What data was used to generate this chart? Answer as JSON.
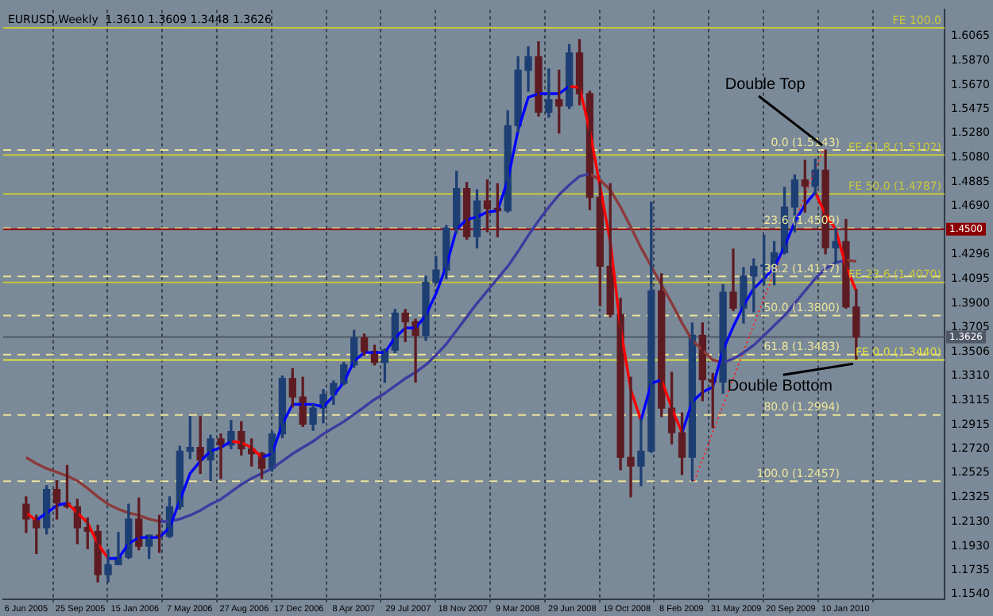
{
  "chart_data": {
    "type": "candlestick",
    "title": "EURUSD,Weekly  1.3610 1.3609 1.3448 1.3626",
    "x": [
      "2005-06-06",
      "2005-06-27",
      "2005-07-18",
      "2005-08-08",
      "2005-08-29",
      "2005-09-19",
      "2005-10-10",
      "2005-10-31",
      "2005-11-21",
      "2005-12-12",
      "2006-01-02",
      "2006-01-23",
      "2006-02-13",
      "2006-03-06",
      "2006-03-27",
      "2006-04-17",
      "2006-05-08",
      "2006-05-29",
      "2006-06-19",
      "2006-07-10",
      "2006-07-31",
      "2006-08-21",
      "2006-09-11",
      "2006-10-02",
      "2006-10-23",
      "2006-11-13",
      "2006-12-04",
      "2006-12-25",
      "2007-01-15",
      "2007-02-05",
      "2007-02-26",
      "2007-03-19",
      "2007-04-09",
      "2007-04-30",
      "2007-05-21",
      "2007-06-11",
      "2007-07-02",
      "2007-07-23",
      "2007-08-13",
      "2007-09-03",
      "2007-09-24",
      "2007-10-15",
      "2007-11-05",
      "2007-11-26",
      "2007-12-17",
      "2008-01-07",
      "2008-01-28",
      "2008-02-18",
      "2008-03-10",
      "2008-03-31",
      "2008-04-21",
      "2008-05-12",
      "2008-06-02",
      "2008-06-23",
      "2008-07-14",
      "2008-08-04",
      "2008-08-25",
      "2008-09-15",
      "2008-10-06",
      "2008-10-27",
      "2008-11-17",
      "2008-12-08",
      "2008-12-29",
      "2009-01-19",
      "2009-02-09",
      "2009-03-02",
      "2009-03-23",
      "2009-04-13",
      "2009-05-04",
      "2009-05-25",
      "2009-06-15",
      "2009-07-06",
      "2009-07-27",
      "2009-08-17",
      "2009-09-07",
      "2009-09-28",
      "2009-10-19",
      "2009-11-09",
      "2009-11-30",
      "2009-12-21",
      "2010-01-11",
      "2010-02-01"
    ],
    "ohlc": [
      [
        1.227,
        1.233,
        1.204,
        1.215
      ],
      [
        1.215,
        1.218,
        1.187,
        1.208
      ],
      [
        1.208,
        1.242,
        1.203,
        1.239
      ],
      [
        1.239,
        1.246,
        1.215,
        1.228
      ],
      [
        1.228,
        1.2585,
        1.224,
        1.225
      ],
      [
        1.225,
        1.231,
        1.195,
        1.208
      ],
      [
        1.208,
        1.216,
        1.191,
        1.205
      ],
      [
        1.205,
        1.21,
        1.164,
        1.17
      ],
      [
        1.17,
        1.19,
        1.164,
        1.178
      ],
      [
        1.178,
        1.204,
        1.178,
        1.184
      ],
      [
        1.184,
        1.227,
        1.183,
        1.215
      ],
      [
        1.215,
        1.232,
        1.19,
        1.193
      ],
      [
        1.193,
        1.202,
        1.183,
        1.202
      ],
      [
        1.202,
        1.218,
        1.188,
        1.201
      ],
      [
        1.201,
        1.233,
        1.2,
        1.225
      ],
      [
        1.225,
        1.274,
        1.223,
        1.27
      ],
      [
        1.27,
        1.298,
        1.264,
        1.273
      ],
      [
        1.273,
        1.298,
        1.252,
        1.263
      ],
      [
        1.263,
        1.283,
        1.246,
        1.28
      ],
      [
        1.28,
        1.284,
        1.248,
        1.275
      ],
      [
        1.275,
        1.295,
        1.272,
        1.286
      ],
      [
        1.286,
        1.294,
        1.267,
        1.272
      ],
      [
        1.272,
        1.28,
        1.258,
        1.268
      ],
      [
        1.268,
        1.269,
        1.248,
        1.256
      ],
      [
        1.256,
        1.286,
        1.254,
        1.284
      ],
      [
        1.284,
        1.331,
        1.281,
        1.329
      ],
      [
        1.329,
        1.337,
        1.306,
        1.314
      ],
      [
        1.314,
        1.33,
        1.29,
        1.292
      ],
      [
        1.292,
        1.308,
        1.287,
        1.305
      ],
      [
        1.305,
        1.32,
        1.293,
        1.316
      ],
      [
        1.316,
        1.327,
        1.308,
        1.325
      ],
      [
        1.325,
        1.342,
        1.324,
        1.34
      ],
      [
        1.34,
        1.368,
        1.338,
        1.362
      ],
      [
        1.362,
        1.365,
        1.348,
        1.351
      ],
      [
        1.351,
        1.356,
        1.34,
        1.342
      ],
      [
        1.342,
        1.353,
        1.326,
        1.352
      ],
      [
        1.352,
        1.385,
        1.35,
        1.382
      ],
      [
        1.382,
        1.385,
        1.359,
        1.375
      ],
      [
        1.375,
        1.377,
        1.326,
        1.364
      ],
      [
        1.364,
        1.412,
        1.36,
        1.407
      ],
      [
        1.407,
        1.428,
        1.406,
        1.417
      ],
      [
        1.417,
        1.453,
        1.41,
        1.451
      ],
      [
        1.451,
        1.497,
        1.447,
        1.483
      ],
      [
        1.483,
        1.488,
        1.442,
        1.444
      ],
      [
        1.444,
        1.482,
        1.435,
        1.473
      ],
      [
        1.473,
        1.49,
        1.448,
        1.467
      ],
      [
        1.467,
        1.487,
        1.444,
        1.465
      ],
      [
        1.465,
        1.546,
        1.464,
        1.534
      ],
      [
        1.534,
        1.59,
        1.529,
        1.579
      ],
      [
        1.579,
        1.598,
        1.562,
        1.59
      ],
      [
        1.59,
        1.602,
        1.542,
        1.545
      ],
      [
        1.545,
        1.58,
        1.541,
        1.555
      ],
      [
        1.555,
        1.579,
        1.528,
        1.55
      ],
      [
        1.55,
        1.6,
        1.548,
        1.593
      ],
      [
        1.593,
        1.6038,
        1.551,
        1.56
      ],
      [
        1.56,
        1.562,
        1.466,
        1.476
      ],
      [
        1.476,
        1.488,
        1.388,
        1.42
      ],
      [
        1.42,
        1.487,
        1.379,
        1.381
      ],
      [
        1.381,
        1.394,
        1.255,
        1.265
      ],
      [
        1.265,
        1.33,
        1.233,
        1.258
      ],
      [
        1.258,
        1.296,
        1.242,
        1.27
      ],
      [
        1.27,
        1.472,
        1.269,
        1.4
      ],
      [
        1.4,
        1.414,
        1.298,
        1.305
      ],
      [
        1.305,
        1.334,
        1.276,
        1.285
      ],
      [
        1.285,
        1.301,
        1.251,
        1.265
      ],
      [
        1.265,
        1.374,
        1.2457,
        1.364
      ],
      [
        1.364,
        1.374,
        1.311,
        1.328
      ],
      [
        1.328,
        1.333,
        1.289,
        1.326
      ],
      [
        1.326,
        1.405,
        1.317,
        1.399
      ],
      [
        1.399,
        1.434,
        1.384,
        1.386
      ],
      [
        1.386,
        1.419,
        1.374,
        1.412
      ],
      [
        1.412,
        1.426,
        1.383,
        1.42
      ],
      [
        1.42,
        1.445,
        1.405,
        1.421
      ],
      [
        1.421,
        1.44,
        1.405,
        1.431
      ],
      [
        1.431,
        1.484,
        1.43,
        1.468
      ],
      [
        1.468,
        1.494,
        1.448,
        1.49
      ],
      [
        1.49,
        1.506,
        1.464,
        1.485
      ],
      [
        1.485,
        1.507,
        1.478,
        1.498
      ],
      [
        1.498,
        1.5143,
        1.43,
        1.435
      ],
      [
        1.435,
        1.451,
        1.422,
        1.44
      ],
      [
        1.44,
        1.458,
        1.386,
        1.387
      ],
      [
        1.387,
        1.401,
        1.3448,
        1.3626
      ]
    ],
    "colors": [
      "#5e1c22",
      "#5e1c22",
      "#1e3f73",
      "#5e1c22",
      "#5e1c22",
      "#5e1c22",
      "#5e1c22",
      "#5e1c22",
      "#1e3f73",
      "#1e3f73",
      "#1e3f73",
      "#5e1c22",
      "#1e3f73",
      "#5e1c22",
      "#1e3f73",
      "#1e3f73",
      "#1e3f73",
      "#5e1c22",
      "#1e3f73",
      "#5e1c22",
      "#1e3f73",
      "#5e1c22",
      "#5e1c22",
      "#5e1c22",
      "#1e3f73",
      "#1e3f73",
      "#5e1c22",
      "#5e1c22",
      "#1e3f73",
      "#1e3f73",
      "#1e3f73",
      "#1e3f73",
      "#1e3f73",
      "#5e1c22",
      "#5e1c22",
      "#1e3f73",
      "#1e3f73",
      "#5e1c22",
      "#5e1c22",
      "#1e3f73",
      "#1e3f73",
      "#1e3f73",
      "#1e3f73",
      "#5e1c22",
      "#1e3f73",
      "#5e1c22",
      "#5e1c22",
      "#1e3f73",
      "#1e3f73",
      "#1e3f73",
      "#5e1c22",
      "#1e3f73",
      "#5e1c22",
      "#1e3f73",
      "#5e1c22",
      "#5e1c22",
      "#5e1c22",
      "#5e1c22",
      "#5e1c22",
      "#5e1c22",
      "#1e3f73",
      "#1e3f73",
      "#5e1c22",
      "#5e1c22",
      "#5e1c22",
      "#1e3f73",
      "#5e1c22",
      "#5e1c22",
      "#1e3f73",
      "#5e1c22",
      "#1e3f73",
      "#1e3f73",
      "#1e3f73",
      "#1e3f73",
      "#1e3f73",
      "#1e3f73",
      "#5e1c22",
      "#1e3f73",
      "#5e1c22",
      "#1e3f73",
      "#5e1c22",
      "#5e1c22"
    ],
    "series": [
      {
        "type": "line",
        "color": "#0000ff",
        "values": [
          null,
          1.214,
          1.22,
          1.226,
          1.228,
          null,
          null,
          null,
          1.183,
          1.183,
          1.195,
          1.2,
          1.2,
          1.2,
          1.208,
          1.23,
          1.252,
          1.262,
          1.27,
          1.273,
          1.278,
          null,
          null,
          1.265,
          1.268,
          1.292,
          1.308,
          1.308,
          1.308,
          1.306,
          1.315,
          1.326,
          1.343,
          1.35,
          1.35,
          1.35,
          1.362,
          1.37,
          1.37,
          1.38,
          1.398,
          1.42,
          1.45,
          1.458,
          1.46,
          1.464,
          1.465,
          1.49,
          1.53,
          1.557,
          1.56,
          1.56,
          1.56,
          1.566,
          null,
          null,
          null,
          null,
          null,
          null,
          1.295,
          1.325,
          1.328,
          null,
          1.285,
          1.31,
          1.318,
          1.322,
          1.352,
          1.371,
          1.388,
          1.402,
          1.41,
          1.419,
          1.436,
          1.456,
          1.47,
          1.48,
          null,
          null,
          null,
          null
        ]
      },
      {
        "type": "line",
        "color": "#ff0000",
        "values": [
          1.22,
          1.214,
          null,
          null,
          1.228,
          1.22,
          1.212,
          1.195,
          1.183,
          null,
          null,
          null,
          null,
          null,
          null,
          null,
          null,
          null,
          null,
          null,
          1.278,
          1.277,
          1.273,
          1.265,
          null,
          null,
          null,
          null,
          null,
          null,
          null,
          null,
          null,
          null,
          null,
          null,
          null,
          null,
          null,
          null,
          null,
          null,
          null,
          null,
          null,
          null,
          null,
          null,
          null,
          null,
          null,
          null,
          null,
          1.566,
          1.565,
          1.53,
          1.485,
          1.44,
          1.37,
          1.32,
          1.295,
          null,
          1.328,
          1.305,
          1.285,
          null,
          null,
          null,
          null,
          null,
          null,
          null,
          null,
          null,
          null,
          null,
          null,
          1.48,
          1.462,
          1.45,
          1.42,
          1.4
        ]
      },
      {
        "type": "line",
        "color": "#3c3ca0",
        "values": [
          null,
          null,
          null,
          null,
          null,
          null,
          null,
          null,
          null,
          null,
          null,
          null,
          null,
          1.213,
          1.213,
          1.215,
          1.218,
          1.222,
          1.227,
          1.231,
          1.237,
          1.243,
          1.248,
          1.252,
          1.256,
          1.262,
          1.268,
          1.273,
          1.278,
          1.284,
          1.289,
          1.294,
          1.3,
          1.306,
          1.312,
          1.317,
          1.323,
          1.329,
          1.334,
          1.34,
          1.348,
          1.357,
          1.368,
          1.379,
          1.39,
          1.4,
          1.41,
          1.42,
          1.432,
          1.445,
          1.457,
          1.468,
          1.478,
          1.486,
          1.493,
          1.495,
          null,
          null,
          null,
          null,
          null,
          null,
          null,
          null,
          null,
          null,
          null,
          null,
          1.342,
          1.345,
          1.35,
          1.356,
          1.364,
          1.372,
          1.38,
          1.39,
          1.4,
          1.41,
          1.418,
          1.423,
          1.425,
          null
        ]
      },
      {
        "type": "line",
        "color": "#8b3a3a",
        "values": [
          1.265,
          1.26,
          1.256,
          1.253,
          1.25,
          1.246,
          1.24,
          1.233,
          1.227,
          1.223,
          1.22,
          1.218,
          1.215,
          1.213,
          null,
          null,
          null,
          null,
          null,
          null,
          null,
          null,
          null,
          null,
          null,
          null,
          null,
          null,
          null,
          null,
          null,
          null,
          null,
          null,
          null,
          null,
          null,
          null,
          null,
          null,
          null,
          null,
          null,
          null,
          null,
          null,
          null,
          null,
          null,
          null,
          null,
          null,
          null,
          null,
          null,
          1.495,
          1.49,
          1.482,
          1.468,
          1.452,
          1.435,
          1.42,
          1.405,
          1.39,
          1.374,
          1.36,
          1.352,
          1.344,
          1.342,
          null,
          null,
          null,
          null,
          null,
          null,
          null,
          null,
          null,
          null,
          null,
          1.425,
          1.424
        ]
      },
      {
        "type": "line",
        "color": "#ff2020",
        "line_style": "dotted",
        "x": [
          "2009-03-06",
          "2009-07-13",
          "2009-11-25"
        ],
        "values": [
          1.2457,
          1.38,
          1.5143
        ]
      }
    ],
    "marker": "none",
    "line_style": "solid",
    "xlim": [
      "2005-04-20",
      "2010-08-01"
    ],
    "xticks": [
      {
        "value": "2005-06-06",
        "label": "6 Jun 2005"
      },
      {
        "value": "2005-09-25",
        "label": "25 Sep 2005"
      },
      {
        "value": "2006-01-15",
        "label": "15 Jan 2006"
      },
      {
        "value": "2006-05-07",
        "label": "7 May 2006"
      },
      {
        "value": "2006-08-27",
        "label": "27 Aug 2006"
      },
      {
        "value": "2006-12-17",
        "label": "17 Dec 2006"
      },
      {
        "value": "2007-04-08",
        "label": "8 Apr 2007"
      },
      {
        "value": "2007-07-29",
        "label": "29 Jul 2007"
      },
      {
        "value": "2007-11-18",
        "label": "18 Nov 2007"
      },
      {
        "value": "2008-03-09",
        "label": "9 Mar 2008"
      },
      {
        "value": "2008-06-29",
        "label": "29 Jun 2008"
      },
      {
        "value": "2008-10-19",
        "label": "19 Oct 2008"
      },
      {
        "value": "2009-02-08",
        "label": "8 Feb 2009"
      },
      {
        "value": "2009-05-31",
        "label": "31 May 2009"
      },
      {
        "value": "2009-09-20",
        "label": "20 Sep 2009"
      },
      {
        "value": "2010-01-10",
        "label": "10 Jan 2010"
      }
    ],
    "ylim": [
      1.15,
      1.628
    ],
    "yticks": [
      {
        "value": 1.6065,
        "label": "1.6065"
      },
      {
        "value": 1.587,
        "label": "1.5870"
      },
      {
        "value": 1.567,
        "label": "1.5670"
      },
      {
        "value": 1.5475,
        "label": "1.5475"
      },
      {
        "value": 1.528,
        "label": "1.5280"
      },
      {
        "value": 1.508,
        "label": "1.5080"
      },
      {
        "value": 1.4885,
        "label": "1.4885"
      },
      {
        "value": 1.469,
        "label": "1.4690"
      },
      {
        "value": 1.4296,
        "label": "1.4296"
      },
      {
        "value": 1.4095,
        "label": "1.4095"
      },
      {
        "value": 1.39,
        "label": "1.3900"
      },
      {
        "value": 1.3705,
        "label": "1.3705"
      },
      {
        "value": 1.3506,
        "label": "1.3506"
      },
      {
        "value": 1.331,
        "label": "1.3310"
      },
      {
        "value": 1.3115,
        "label": "1.3115"
      },
      {
        "value": 1.2915,
        "label": "1.2915"
      },
      {
        "value": 1.272,
        "label": "1.2720"
      },
      {
        "value": 1.2525,
        "label": "1.2525"
      },
      {
        "value": 1.2325,
        "label": "1.2325"
      },
      {
        "value": 1.213,
        "label": "1.2130"
      },
      {
        "value": 1.193,
        "label": "1.1930"
      },
      {
        "value": 1.1735,
        "label": "1.1735"
      },
      {
        "value": 1.154,
        "label": "1.1540"
      }
    ],
    "grid": "x",
    "ref_lines": [
      {
        "axis": "y",
        "value": 1.6134,
        "label": "FE 100.0",
        "color": "#c8c83c",
        "line_style": "solid"
      },
      {
        "axis": "y",
        "value": 1.5143,
        "label": "0.0 (1.5143)",
        "color": "#ece49a",
        "line_style": "dashed"
      },
      {
        "axis": "y",
        "value": 1.5102,
        "label": "FE 61.8 (1.5102)",
        "color": "#c8c83c",
        "line_style": "solid"
      },
      {
        "axis": "y",
        "value": 1.4787,
        "label": "FE 50.0 (1.4787)",
        "color": "#c8c83c",
        "line_style": "solid"
      },
      {
        "axis": "y",
        "value": 1.4509,
        "label": "23.6 (1.4509)",
        "color": "#ece49a",
        "line_style": "dashed"
      },
      {
        "axis": "y",
        "value": 1.45,
        "label": "1.4500",
        "color": "#8b0000",
        "line_style": "solid"
      },
      {
        "axis": "y",
        "value": 1.4117,
        "label": "38.2 (1.4117)",
        "color": "#ece49a",
        "line_style": "dashed"
      },
      {
        "axis": "y",
        "value": 1.407,
        "label": "FE 23.6 (1.4070)",
        "color": "#c8c83c",
        "line_style": "solid"
      },
      {
        "axis": "y",
        "value": 1.38,
        "label": "50.0 (1.3800)",
        "color": "#ece49a",
        "line_style": "dashed"
      },
      {
        "axis": "y",
        "value": 1.3626,
        "label": "1.3626",
        "color": "#505868",
        "line_style": "solid"
      },
      {
        "axis": "y",
        "value": 1.3483,
        "label": "61.8 (1.3483)",
        "color": "#ece49a",
        "line_style": "dashed"
      },
      {
        "axis": "y",
        "value": 1.344,
        "label": "FE 0.0 (1.3440)",
        "color": "#e0e040",
        "line_style": "solid"
      },
      {
        "axis": "y",
        "value": 1.2994,
        "label": "80.0 (1.2994)",
        "color": "#ece49a",
        "line_style": "dashed"
      },
      {
        "axis": "y",
        "value": 1.2457,
        "label": "100.0 (1.2457)",
        "color": "#ece49a",
        "line_style": "dashed"
      }
    ],
    "annotations": [
      {
        "text": "Double Top",
        "x": "2009-11-30",
        "y": 1.5143
      },
      {
        "text": "Double Bottom",
        "x": "2010-02-01",
        "y": 1.3448
      }
    ]
  }
}
